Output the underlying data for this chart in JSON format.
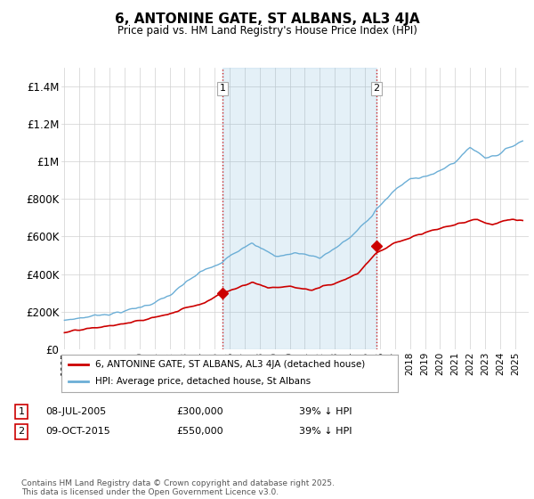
{
  "title": "6, ANTONINE GATE, ST ALBANS, AL3 4JA",
  "subtitle": "Price paid vs. HM Land Registry's House Price Index (HPI)",
  "ylim": [
    0,
    1500000
  ],
  "yticks": [
    0,
    200000,
    400000,
    600000,
    800000,
    1000000,
    1200000,
    1400000
  ],
  "ytick_labels": [
    "£0",
    "£200K",
    "£400K",
    "£600K",
    "£800K",
    "£1M",
    "£1.2M",
    "£1.4M"
  ],
  "hpi_color": "#6baed6",
  "hpi_fill_color": "#c6dbef",
  "price_color": "#cc0000",
  "marker_color": "#cc0000",
  "vline_color": "#cc0000",
  "background_color": "#ffffff",
  "grid_color": "#d0d0d0",
  "legend_label_price": "6, ANTONINE GATE, ST ALBANS, AL3 4JA (detached house)",
  "legend_label_hpi": "HPI: Average price, detached house, St Albans",
  "sale1_date": "08-JUL-2005",
  "sale1_price": "£300,000",
  "sale1_note": "39% ↓ HPI",
  "sale1_x": 2005.52,
  "sale1_y": 300000,
  "sale2_date": "09-OCT-2015",
  "sale2_price": "£550,000",
  "sale2_note": "39% ↓ HPI",
  "sale2_x": 2015.77,
  "sale2_y": 550000,
  "copyright": "Contains HM Land Registry data © Crown copyright and database right 2025.\nThis data is licensed under the Open Government Licence v3.0.",
  "figsize": [
    6.0,
    5.6
  ],
  "dpi": 100,
  "xmin": 1994.8,
  "xmax": 2025.9
}
